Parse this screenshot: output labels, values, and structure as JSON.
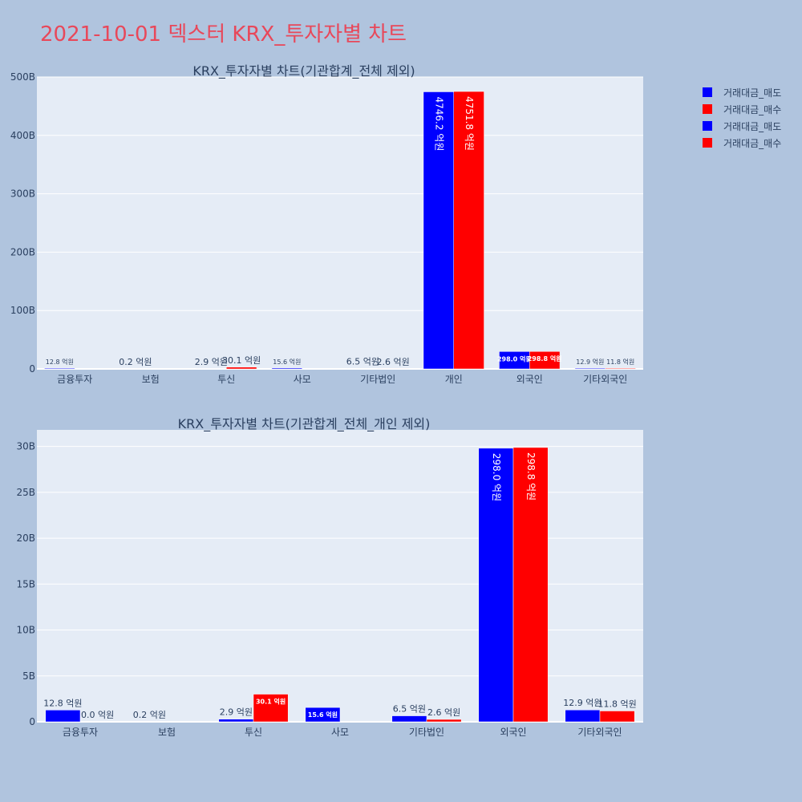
{
  "title": "2021-10-01 덱스터 KRX_투자자별 차트",
  "colors": {
    "sell": "#0000ff",
    "buy": "#ff0000",
    "plot_bg": "#e5ecf6",
    "page_bg": "#b0c4de",
    "title": "#e8485a"
  },
  "legend": [
    {
      "label": "거래대금_매도",
      "color": "#0000ff"
    },
    {
      "label": "거래대금_매수",
      "color": "#ff0000"
    },
    {
      "label": "거래대금_매도",
      "color": "#0000ff"
    },
    {
      "label": "거래대금_매수",
      "color": "#ff0000"
    }
  ],
  "chart_data": [
    {
      "type": "bar",
      "title": "KRX_투자자별 차트(기관합계_전체 제외)",
      "categories": [
        "금융투자",
        "보험",
        "투신",
        "사모",
        "기타법인",
        "개인",
        "외국인",
        "기타외국인"
      ],
      "ylim": [
        0,
        500
      ],
      "y_ticks": [
        0,
        100,
        200,
        300,
        400,
        500
      ],
      "y_tick_labels": [
        "0",
        "100B",
        "200B",
        "300B",
        "400B",
        "500B"
      ],
      "series": [
        {
          "name": "거래대금_매도",
          "values": [
            1.28,
            0.02,
            0.29,
            1.56,
            0.65,
            474.62,
            29.8,
            1.29
          ],
          "labels": [
            "12.8 억원",
            "0.2 억원",
            "2.9 억원",
            "15.6 억원",
            "6.5 억원",
            "4746.2 억원",
            "298.0 억원",
            "12.9 억원"
          ]
        },
        {
          "name": "거래대금_매수",
          "values": [
            0.0,
            0.0,
            3.01,
            0.0,
            0.26,
            475.18,
            29.88,
            1.18
          ],
          "labels": [
            "",
            "",
            "30.1 억원",
            "",
            "2.6 억원",
            "4751.8 억원",
            "298.8 억원",
            "11.8 억원"
          ]
        }
      ]
    },
    {
      "type": "bar",
      "title": "KRX_투자자별 차트(기관합계_전체_개인 제외)",
      "categories": [
        "금융투자",
        "보험",
        "투신",
        "사모",
        "기타법인",
        "외국인",
        "기타외국인"
      ],
      "ylim": [
        0,
        31.8
      ],
      "y_ticks": [
        0,
        5,
        10,
        15,
        20,
        25,
        30
      ],
      "y_tick_labels": [
        "0",
        "5B",
        "10B",
        "15B",
        "20B",
        "25B",
        "30B"
      ],
      "series": [
        {
          "name": "거래대금_매도",
          "values": [
            1.28,
            0.02,
            0.29,
            1.56,
            0.65,
            29.8,
            1.29
          ],
          "labels": [
            "12.8 억원",
            "0.2 억원",
            "2.9 억원",
            "15.6 억원",
            "6.5 억원",
            "298.0 억원",
            "12.9 억원"
          ]
        },
        {
          "name": "거래대금_매수",
          "values": [
            0.0,
            0.0,
            3.01,
            0.0,
            0.26,
            29.88,
            1.18
          ],
          "labels": [
            "0.0 억원",
            "",
            "30.1 억원",
            "",
            "2.6 억원",
            "298.8 억원",
            "11.8 억원"
          ]
        }
      ]
    }
  ]
}
